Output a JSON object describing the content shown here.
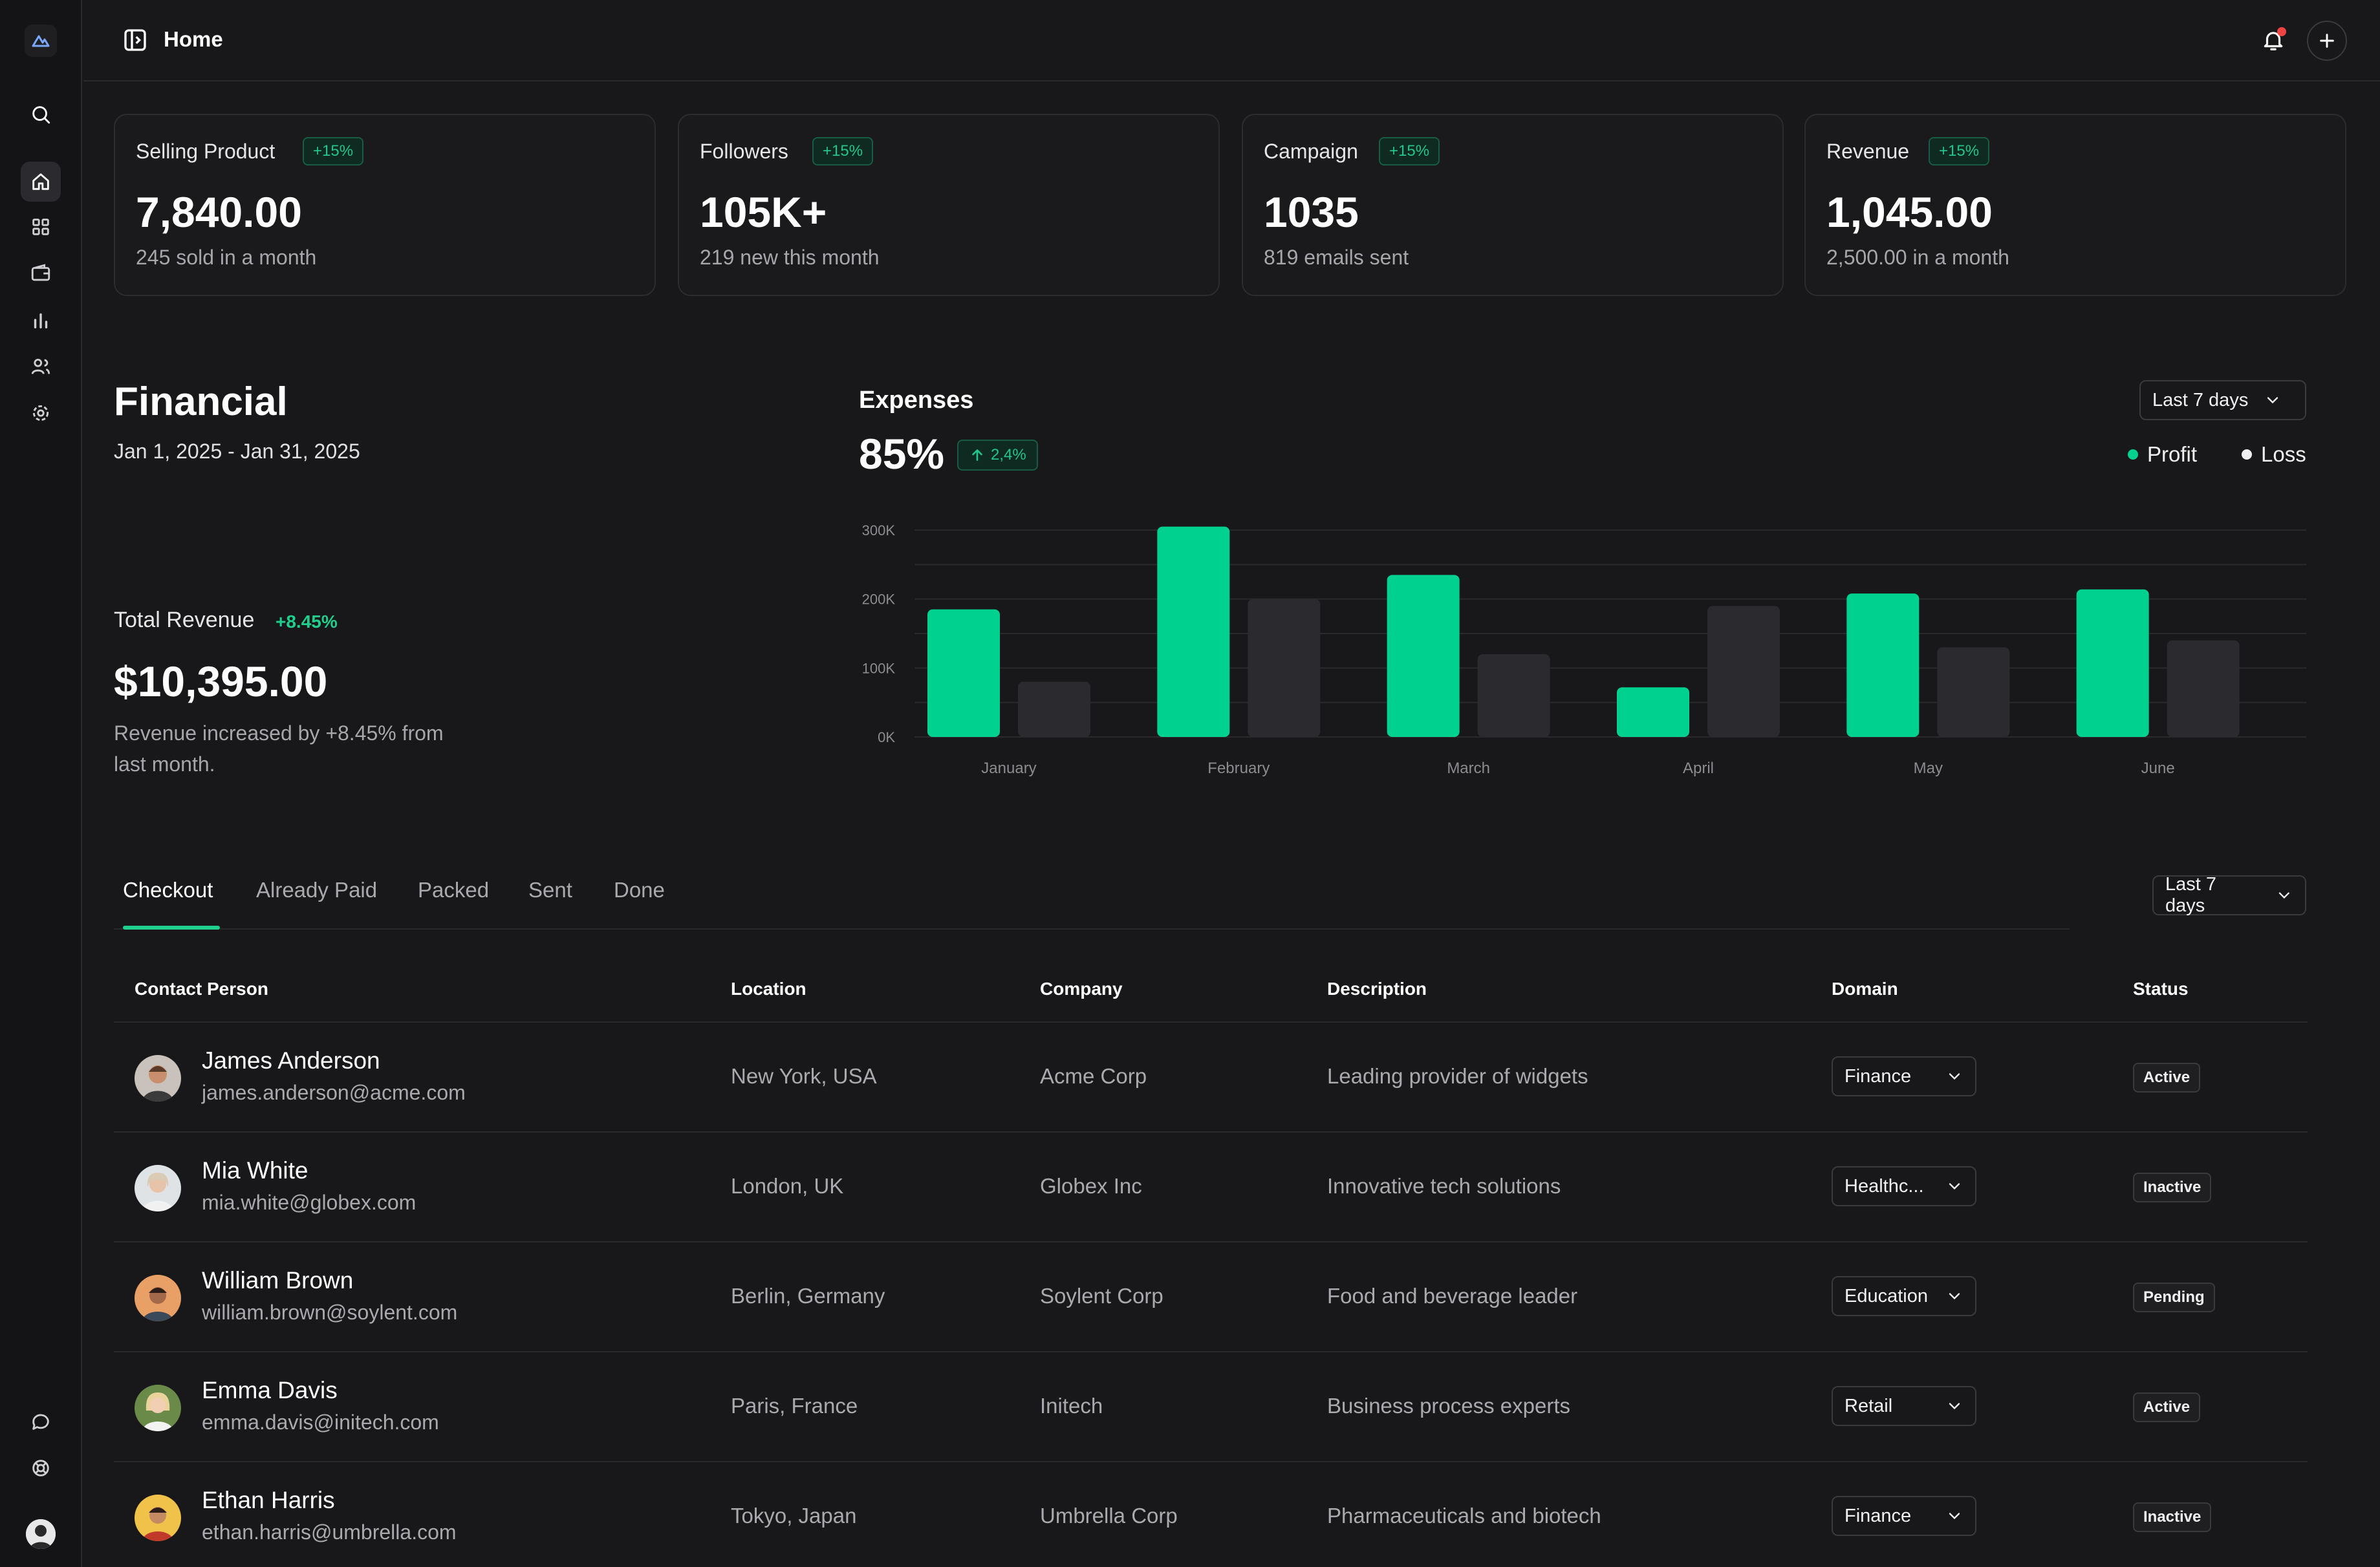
{
  "header": {
    "title": "Home"
  },
  "stats": [
    {
      "label": "Selling Product",
      "badge": "+15%",
      "value": "7,840.00",
      "sub": "245 sold in a month"
    },
    {
      "label": "Followers",
      "badge": "+15%",
      "value": "105K+",
      "sub": "219 new this month"
    },
    {
      "label": "Campaign",
      "badge": "+15%",
      "value": "1035",
      "sub": "819 emails sent"
    },
    {
      "label": "Revenue",
      "badge": "+15%",
      "value": "1,045.00",
      "sub": "2,500.00 in a month"
    }
  ],
  "financial": {
    "title": "Financial",
    "date_range": "Jan 1, 2025 - Jan 31, 2025",
    "total_revenue_label": "Total Revenue",
    "total_revenue_change": "+8.45%",
    "total_revenue_value": "$10,395.00",
    "description": "Revenue increased by +8.45% from last month."
  },
  "expenses": {
    "title": "Expenses",
    "value": "85%",
    "badge": "2,4%",
    "range_select": "Last 7 days",
    "legend_profit": "Profit",
    "legend_loss": "Loss"
  },
  "chart_data": {
    "type": "bar",
    "categories": [
      "January",
      "February",
      "March",
      "April",
      "May",
      "June"
    ],
    "series": [
      {
        "name": "Profit",
        "values": [
          185000,
          305000,
          235000,
          72000,
          208000,
          214000
        ]
      },
      {
        "name": "Loss",
        "values": [
          80000,
          200000,
          120000,
          190000,
          130000,
          140000
        ]
      }
    ],
    "y_ticks": [
      "0K",
      "100K",
      "200K",
      "300K"
    ],
    "ylim": [
      0,
      300000
    ],
    "grid": true,
    "legend": "top-right",
    "colors": {
      "Profit": "#00d18f",
      "Loss": "#2b2b2f"
    }
  },
  "tabs": {
    "items": [
      "Checkout",
      "Already Paid",
      "Packed",
      "Sent",
      "Done"
    ],
    "active": "Checkout",
    "range_select": "Last 7 days"
  },
  "table": {
    "headers": [
      "Contact Person",
      "Location",
      "Company",
      "Description",
      "Domain",
      "Status"
    ],
    "rows": [
      {
        "name": "James Anderson",
        "email": "james.anderson@acme.com",
        "location": "New York, USA",
        "company": "Acme Corp",
        "description": "Leading provider of widgets",
        "domain": "Finance",
        "status": "Active"
      },
      {
        "name": "Mia White",
        "email": "mia.white@globex.com",
        "location": "London, UK",
        "company": "Globex Inc",
        "description": "Innovative tech solutions",
        "domain": "Healthc...",
        "status": "Inactive"
      },
      {
        "name": "William Brown",
        "email": "william.brown@soylent.com",
        "location": "Berlin, Germany",
        "company": "Soylent Corp",
        "description": "Food and beverage leader",
        "domain": "Education",
        "status": "Pending"
      },
      {
        "name": "Emma Davis",
        "email": "emma.davis@initech.com",
        "location": "Paris, France",
        "company": "Initech",
        "description": "Business process experts",
        "domain": "Retail",
        "status": "Active"
      },
      {
        "name": "Ethan Harris",
        "email": "ethan.harris@umbrella.com",
        "location": "Tokyo, Japan",
        "company": "Umbrella Corp",
        "description": "Pharmaceuticals and biotech",
        "domain": "Finance",
        "status": "Inactive"
      }
    ]
  },
  "colors": {
    "accent": "#00d18f",
    "background": "#18181a",
    "notification": "#ef4444"
  }
}
